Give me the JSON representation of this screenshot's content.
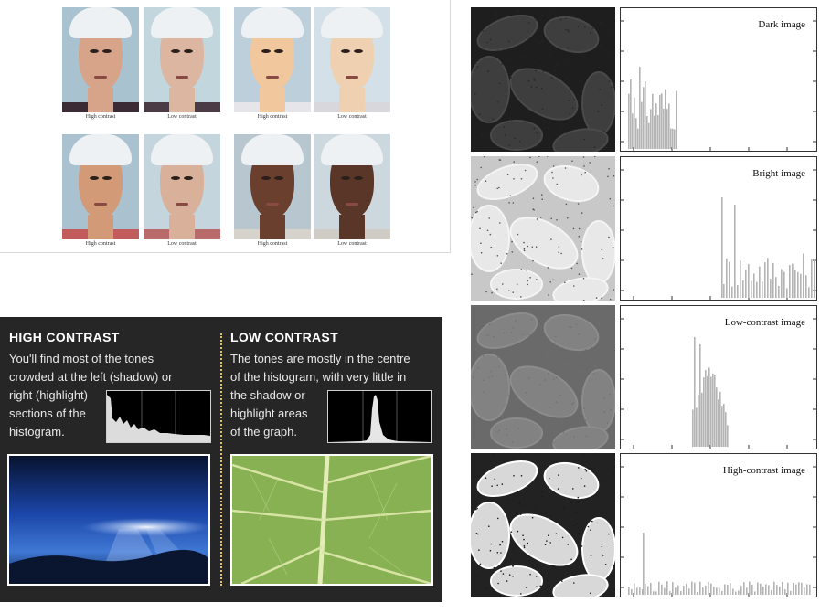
{
  "faces": {
    "captions": [
      "High contrast",
      "Low contrast",
      "High contrast",
      "Low contrast",
      "High contrast",
      "Low contrast",
      "High contrast",
      "Low contrast"
    ]
  },
  "contrast_panel": {
    "high": {
      "title": "HIGH CONTRAST",
      "lines": [
        "You'll find most of the tones",
        "crowded at the left (shadow) or",
        "right (highlight)",
        "sections of the",
        "histogram."
      ]
    },
    "low": {
      "title": "LOW CONTRAST",
      "lines": [
        "The tones are mostly in the centre",
        "of the histogram, with very little in",
        "the shadow or",
        "highlight areas",
        "of the graph."
      ]
    }
  },
  "histograms": [
    {
      "label": "Dark image"
    },
    {
      "label": "Bright image"
    },
    {
      "label": "Low-contrast image"
    },
    {
      "label": "High-contrast image"
    }
  ],
  "colors": {
    "panel_bg": "#262626",
    "divider": "#e0c35a",
    "sky_blue": "#1b45a8",
    "leaf_green": "#8fb85a"
  }
}
